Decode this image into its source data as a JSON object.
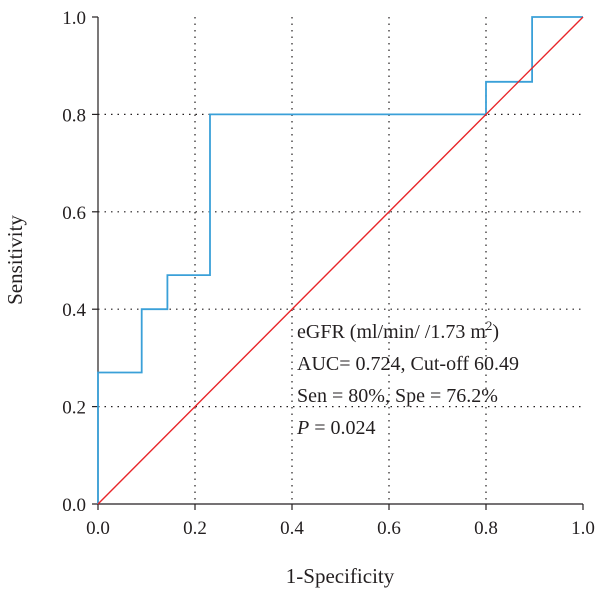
{
  "chart_data": {
    "type": "line",
    "xlabel": "1-Specificity",
    "ylabel": "Sensitivity",
    "xlim": [
      0,
      1
    ],
    "ylim": [
      0,
      1
    ],
    "xticks": [
      "0.0",
      "0.2",
      "0.4",
      "0.6",
      "0.8",
      "1.0"
    ],
    "yticks": [
      "0.0",
      "0.2",
      "0.4",
      "0.6",
      "0.8",
      "1.0"
    ],
    "grid": true,
    "series": [
      {
        "color": "#3aa0d8",
        "x": [
          0,
          0,
          0.09,
          0.09,
          0.143,
          0.143,
          0.231,
          0.231,
          0.8,
          0.8,
          0.895,
          0.895,
          1.0
        ],
        "y": [
          0,
          0.27,
          0.27,
          0.4,
          0.4,
          0.47,
          0.47,
          0.8,
          0.8,
          0.867,
          0.867,
          1.0,
          1.0
        ]
      },
      {
        "color": "#e8262a",
        "x": [
          0,
          1
        ],
        "y": [
          0,
          1
        ]
      }
    ],
    "annotation": {
      "line1_prefix": "eGFR (ml/min/ /1.73 m",
      "line1_sup": "2",
      "line1_suffix": ")",
      "line2": "AUC= 0.724, Cut-off 60.49",
      "line3": "Sen = 80%, Spe = 76.2%",
      "line4_italic": "P",
      "line4_rest": " = 0.024"
    }
  }
}
